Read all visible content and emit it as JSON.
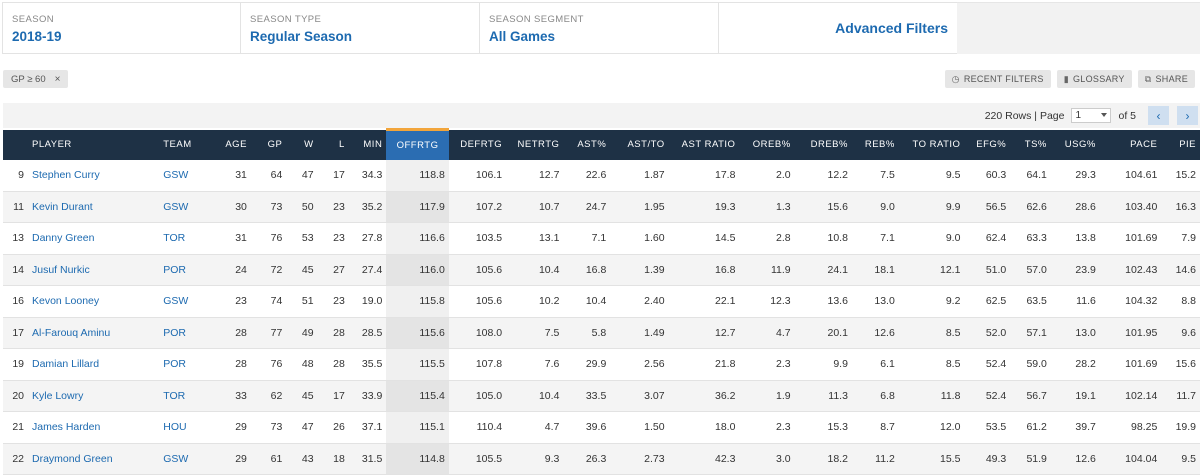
{
  "filters": [
    {
      "label": "SEASON",
      "value": "2018-19"
    },
    {
      "label": "SEASON TYPE",
      "value": "Regular Season"
    },
    {
      "label": "SEASON SEGMENT",
      "value": "All Games"
    }
  ],
  "advanced_filters": "Advanced Filters",
  "active_filter": {
    "text": "GP ≥ 60",
    "remove": "×"
  },
  "toolbar": {
    "recent_filters": "RECENT FILTERS",
    "glossary": "GLOSSARY",
    "share": "SHARE"
  },
  "pager": {
    "rows_text": "220 Rows | Page",
    "page": "1",
    "of_text": "of 5",
    "prev": "‹",
    "next": "›"
  },
  "columns": [
    "",
    "PLAYER",
    "TEAM",
    "AGE",
    "GP",
    "W",
    "L",
    "MIN",
    "OFFRTG",
    "DEFRTG",
    "NETRTG",
    "AST%",
    "AST/TO",
    "AST RATIO",
    "OREB%",
    "DREB%",
    "REB%",
    "TO RATIO",
    "EFG%",
    "TS%",
    "USG%",
    "PACE",
    "PIE"
  ],
  "rows": [
    [
      "9",
      "Stephen Curry",
      "GSW",
      "31",
      "64",
      "47",
      "17",
      "34.3",
      "118.8",
      "106.1",
      "12.7",
      "22.6",
      "1.87",
      "17.8",
      "2.0",
      "12.2",
      "7.5",
      "9.5",
      "60.3",
      "64.1",
      "29.3",
      "104.61",
      "15.2"
    ],
    [
      "11",
      "Kevin Durant",
      "GSW",
      "30",
      "73",
      "50",
      "23",
      "35.2",
      "117.9",
      "107.2",
      "10.7",
      "24.7",
      "1.95",
      "19.3",
      "1.3",
      "15.6",
      "9.0",
      "9.9",
      "56.5",
      "62.6",
      "28.6",
      "103.40",
      "16.3"
    ],
    [
      "13",
      "Danny Green",
      "TOR",
      "31",
      "76",
      "53",
      "23",
      "27.8",
      "116.6",
      "103.5",
      "13.1",
      "7.1",
      "1.60",
      "14.5",
      "2.8",
      "10.8",
      "7.1",
      "9.0",
      "62.4",
      "63.3",
      "13.8",
      "101.69",
      "7.9"
    ],
    [
      "14",
      "Jusuf Nurkic",
      "POR",
      "24",
      "72",
      "45",
      "27",
      "27.4",
      "116.0",
      "105.6",
      "10.4",
      "16.8",
      "1.39",
      "16.8",
      "11.9",
      "24.1",
      "18.1",
      "12.1",
      "51.0",
      "57.0",
      "23.9",
      "102.43",
      "14.6"
    ],
    [
      "16",
      "Kevon Looney",
      "GSW",
      "23",
      "74",
      "51",
      "23",
      "19.0",
      "115.8",
      "105.6",
      "10.2",
      "10.4",
      "2.40",
      "22.1",
      "12.3",
      "13.6",
      "13.0",
      "9.2",
      "62.5",
      "63.5",
      "11.6",
      "104.32",
      "8.8"
    ],
    [
      "17",
      "Al-Farouq Aminu",
      "POR",
      "28",
      "77",
      "49",
      "28",
      "28.5",
      "115.6",
      "108.0",
      "7.5",
      "5.8",
      "1.49",
      "12.7",
      "4.7",
      "20.1",
      "12.6",
      "8.5",
      "52.0",
      "57.1",
      "13.0",
      "101.95",
      "9.6"
    ],
    [
      "19",
      "Damian Lillard",
      "POR",
      "28",
      "76",
      "48",
      "28",
      "35.5",
      "115.5",
      "107.8",
      "7.6",
      "29.9",
      "2.56",
      "21.8",
      "2.3",
      "9.9",
      "6.1",
      "8.5",
      "52.4",
      "59.0",
      "28.2",
      "101.69",
      "15.6"
    ],
    [
      "20",
      "Kyle Lowry",
      "TOR",
      "33",
      "62",
      "45",
      "17",
      "33.9",
      "115.4",
      "105.0",
      "10.4",
      "33.5",
      "3.07",
      "36.2",
      "1.9",
      "11.3",
      "6.8",
      "11.8",
      "52.4",
      "56.7",
      "19.1",
      "102.14",
      "11.7"
    ],
    [
      "21",
      "James Harden",
      "HOU",
      "29",
      "73",
      "47",
      "26",
      "37.1",
      "115.1",
      "110.4",
      "4.7",
      "39.6",
      "1.50",
      "18.0",
      "2.3",
      "15.3",
      "8.7",
      "12.0",
      "53.5",
      "61.2",
      "39.7",
      "98.25",
      "19.9"
    ],
    [
      "22",
      "Draymond Green",
      "GSW",
      "29",
      "61",
      "43",
      "18",
      "31.5",
      "114.8",
      "105.5",
      "9.3",
      "26.3",
      "2.73",
      "42.3",
      "3.0",
      "18.2",
      "11.2",
      "15.5",
      "49.3",
      "51.9",
      "12.6",
      "104.04",
      "9.5"
    ]
  ],
  "sorted_column": "OFFRTG",
  "colors": {
    "header_bg": "#1e3145",
    "sorted_header_bg": "#2b6db2",
    "sort_indicator": "#f2a53b",
    "link": "#1d6ab0"
  }
}
